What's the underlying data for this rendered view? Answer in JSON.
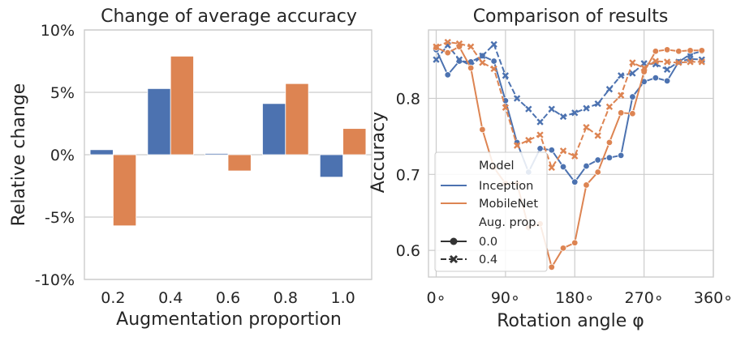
{
  "colors": {
    "inception": "#4c72b0",
    "mobilenet": "#dd8452",
    "grid": "#cccccc",
    "text": "#262626"
  },
  "chart_data": [
    {
      "type": "bar",
      "title": "Change of average accuracy",
      "xlabel": "Augmentation proportion",
      "ylabel": "Relative change",
      "categories": [
        "0.2",
        "0.4",
        "0.6",
        "0.8",
        "1.0"
      ],
      "series": [
        {
          "color_key": "inception",
          "values": [
            0.4,
            5.3,
            0.1,
            4.1,
            -1.8
          ]
        },
        {
          "color_key": "mobilenet",
          "values": [
            -5.7,
            7.9,
            -1.3,
            5.7,
            2.1
          ]
        }
      ],
      "ylim": [
        -10,
        10
      ],
      "yticks": [
        -10,
        -5,
        0,
        5,
        10
      ],
      "ytick_labels": [
        "-10%",
        "-5%",
        "0%",
        "5%",
        "10%"
      ],
      "grid": "horizontal"
    },
    {
      "type": "line",
      "title": "Comparison of results",
      "xlabel": "Rotation angle φ",
      "ylabel": "Accuracy",
      "x": [
        0,
        15,
        30,
        45,
        60,
        75,
        90,
        105,
        120,
        135,
        150,
        165,
        180,
        195,
        210,
        225,
        240,
        255,
        270,
        285,
        300,
        315,
        330,
        345
      ],
      "series": [
        {
          "model": "Inception",
          "prop": "0.0",
          "color_key": "inception",
          "marker": "circle",
          "dash": false,
          "values": [
            0.864,
            0.831,
            0.849,
            0.848,
            0.856,
            0.849,
            0.797,
            0.742,
            0.703,
            0.734,
            0.732,
            0.71,
            0.69,
            0.711,
            0.719,
            0.722,
            0.725,
            0.802,
            0.822,
            0.827,
            0.823,
            0.848,
            0.858,
            0.862
          ]
        },
        {
          "model": "Inception",
          "prop": "0.4",
          "color_key": "inception",
          "marker": "x",
          "dash": true,
          "values": [
            0.851,
            0.87,
            0.851,
            0.843,
            0.856,
            0.871,
            0.83,
            0.8,
            0.786,
            0.769,
            0.786,
            0.776,
            0.781,
            0.787,
            0.793,
            0.812,
            0.83,
            0.833,
            0.846,
            0.845,
            0.838,
            0.848,
            0.852,
            0.851
          ]
        },
        {
          "model": "MobileNet",
          "prop": "0.0",
          "color_key": "mobilenet",
          "marker": "circle",
          "dash": false,
          "values": [
            0.867,
            0.86,
            0.868,
            0.84,
            0.759,
            0.709,
            0.688,
            0.688,
            0.63,
            0.635,
            0.578,
            0.603,
            0.61,
            0.686,
            0.703,
            0.742,
            0.781,
            0.78,
            0.835,
            0.862,
            0.864,
            0.862,
            0.863,
            0.863
          ]
        },
        {
          "model": "MobileNet",
          "prop": "0.4",
          "color_key": "mobilenet",
          "marker": "x",
          "dash": true,
          "values": [
            0.868,
            0.874,
            0.872,
            0.868,
            0.847,
            0.839,
            0.788,
            0.738,
            0.745,
            0.752,
            0.709,
            0.731,
            0.724,
            0.762,
            0.751,
            0.789,
            0.804,
            0.847,
            0.84,
            0.849,
            0.848,
            0.847,
            0.848,
            0.848
          ]
        }
      ],
      "xlim": [
        -10,
        360
      ],
      "ylim": [
        0.565,
        0.89
      ],
      "xticks": [
        0,
        90,
        180,
        270,
        360
      ],
      "xtick_labels": [
        "0∘",
        "90∘",
        "180∘",
        "270∘",
        "360∘"
      ],
      "yticks": [
        0.6,
        0.7,
        0.8
      ],
      "ytick_labels": [
        "0.6",
        "0.7",
        "0.8"
      ],
      "grid": "both",
      "legend": {
        "placement": "lower-left",
        "model_title": "Model",
        "model_entries": [
          "Inception",
          "MobileNet"
        ],
        "prop_title": "Aug. prop.",
        "prop_entries": [
          "0.0",
          "0.4"
        ]
      }
    }
  ]
}
